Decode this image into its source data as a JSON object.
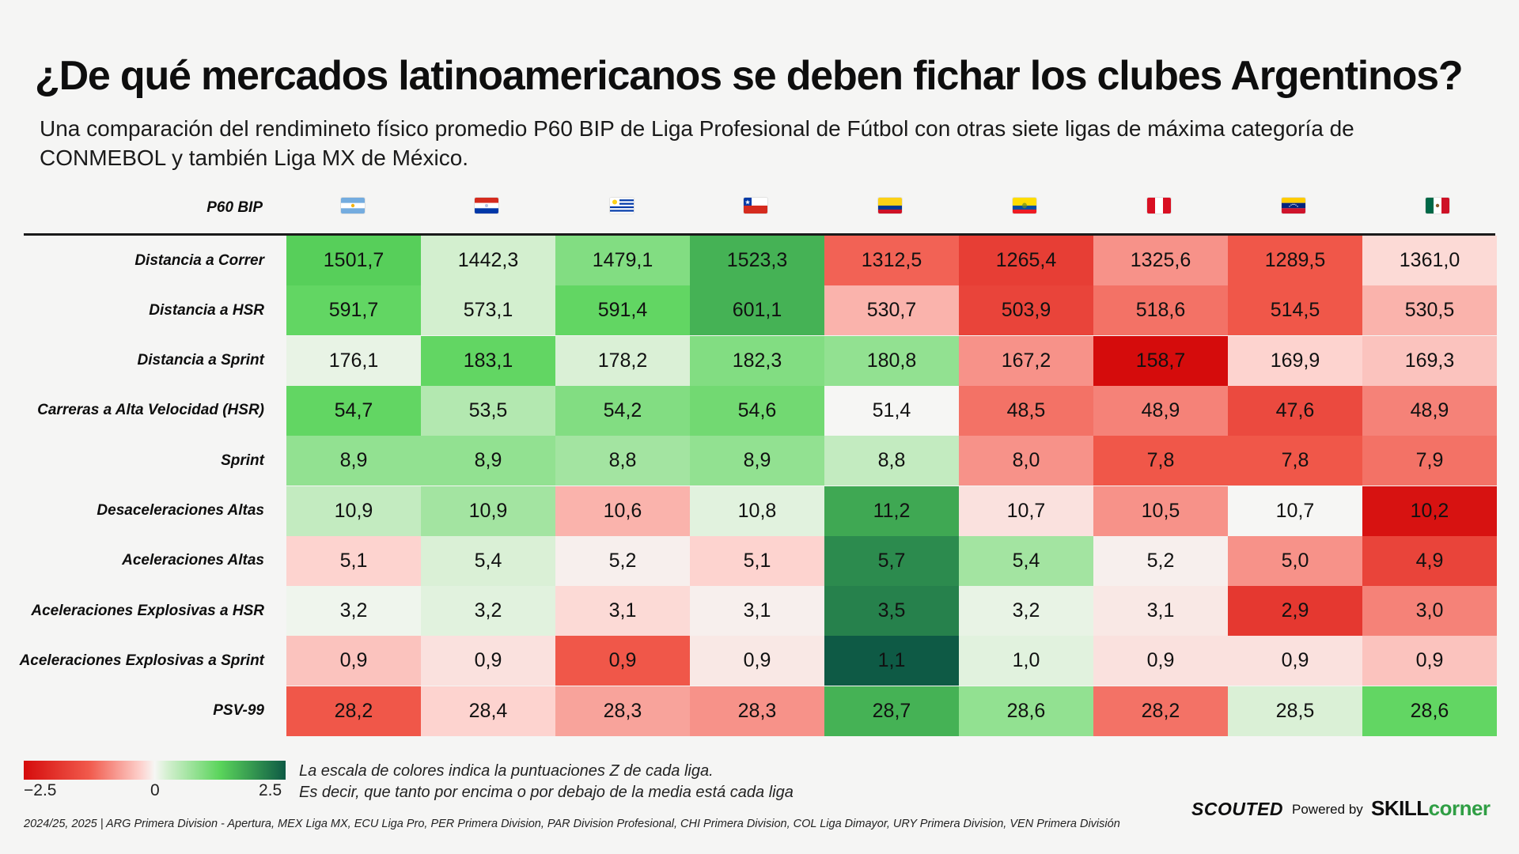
{
  "title": "¿De qué mercados latinoamericanos se deben fichar los clubes Argentinos?",
  "subtitle": "Una comparación del rendimineto físico promedio P60 BIP de Liga Profesional de Fútbol con otras siete ligas de máxima categoría de CONMEBOL y también Liga MX de México.",
  "header_label": "P60 BIP",
  "chart_data": {
    "type": "heatmap",
    "title": "¿De qué mercados latinoamericanos se deben fichar los clubes Argentinos?",
    "columns": [
      "ARG",
      "PAR",
      "URY",
      "CHI",
      "COL",
      "ECU",
      "PER",
      "VEN",
      "MEX"
    ],
    "column_icons": [
      "argentina-flag-icon",
      "paraguay-flag-icon",
      "uruguay-flag-icon",
      "chile-flag-icon",
      "colombia-flag-icon",
      "ecuador-flag-icon",
      "peru-flag-icon",
      "venezuela-flag-icon",
      "mexico-flag-icon"
    ],
    "rows": [
      {
        "label": "Distancia a Correr",
        "values": [
          "1501,7",
          "1442,3",
          "1479,1",
          "1523,3",
          "1312,5",
          "1265,4",
          "1325,6",
          "1289,5",
          "1361,0"
        ],
        "z": [
          1.3,
          0.5,
          1.0,
          1.6,
          -1.2,
          -1.7,
          -0.9,
          -1.3,
          -0.4
        ]
      },
      {
        "label": "Distancia a HSR",
        "values": [
          "591,7",
          "573,1",
          "591,4",
          "601,1",
          "530,7",
          "503,9",
          "518,6",
          "514,5",
          "530,5"
        ],
        "z": [
          1.2,
          0.5,
          1.2,
          1.6,
          -0.7,
          -1.6,
          -1.1,
          -1.3,
          -0.7
        ]
      },
      {
        "label": "Distancia a Sprint",
        "values": [
          "176,1",
          "183,1",
          "178,2",
          "182,3",
          "180,8",
          "167,2",
          "158,7",
          "169,9",
          "169,3"
        ],
        "z": [
          0.2,
          1.2,
          0.4,
          1.0,
          0.9,
          -0.9,
          -2.5,
          -0.5,
          -0.6
        ]
      },
      {
        "label": "Carreras a Alta Velocidad (HSR)",
        "values": [
          "54,7",
          "53,5",
          "54,2",
          "54,6",
          "51,4",
          "48,5",
          "48,9",
          "47,6",
          "48,9"
        ],
        "z": [
          1.2,
          0.7,
          1.0,
          1.1,
          0.0,
          -1.1,
          -1.0,
          -1.5,
          -1.0
        ]
      },
      {
        "label": "Sprint",
        "values": [
          "8,9",
          "8,9",
          "8,8",
          "8,9",
          "8,8",
          "8,0",
          "7,8",
          "7,8",
          "7,9"
        ],
        "z": [
          0.9,
          0.9,
          0.8,
          0.9,
          0.6,
          -0.9,
          -1.3,
          -1.3,
          -1.1
        ]
      },
      {
        "label": "Desaceleraciones Altas",
        "values": [
          "10,9",
          "10,9",
          "10,6",
          "10,8",
          "11,2",
          "10,7",
          "10,5",
          "10,7",
          "10,2"
        ],
        "z": [
          0.6,
          0.8,
          -0.7,
          0.3,
          1.7,
          -0.3,
          -0.9,
          0.0,
          -2.4
        ]
      },
      {
        "label": "Aceleraciones Altas",
        "values": [
          "5,1",
          "5,4",
          "5,2",
          "5,1",
          "5,7",
          "5,4",
          "5,2",
          "5,0",
          "4,9"
        ],
        "z": [
          -0.5,
          0.4,
          -0.1,
          -0.5,
          2.0,
          0.8,
          -0.1,
          -0.9,
          -1.6
        ]
      },
      {
        "label": "Aceleraciones Explosivas a HSR",
        "values": [
          "3,2",
          "3,2",
          "3,1",
          "3,1",
          "3,5",
          "3,2",
          "3,1",
          "2,9",
          "3,0"
        ],
        "z": [
          0.1,
          0.3,
          -0.4,
          -0.1,
          2.1,
          0.2,
          -0.2,
          -1.8,
          -1.0
        ]
      },
      {
        "label": "Aceleraciones Explosivas a Sprint",
        "values": [
          "0,9",
          "0,9",
          "0,9",
          "0,9",
          "1,1",
          "1,0",
          "0,9",
          "0,9",
          "0,9"
        ],
        "z": [
          -0.6,
          -0.3,
          -1.3,
          -0.2,
          2.5,
          0.3,
          -0.3,
          -0.3,
          -0.6
        ]
      },
      {
        "label": "PSV-99",
        "values": [
          "28,2",
          "28,4",
          "28,3",
          "28,3",
          "28,7",
          "28,6",
          "28,2",
          "28,5",
          "28,6"
        ],
        "z": [
          -1.3,
          -0.5,
          -0.8,
          -0.9,
          1.6,
          0.9,
          -1.1,
          0.4,
          1.2
        ]
      }
    ],
    "color_scale": {
      "min": -2.5,
      "mid": 0,
      "max": 2.5,
      "low_color": "#d50c0c",
      "mid_color": "#f6f6f4",
      "high_color": "#0e5a45"
    }
  },
  "legend": {
    "min_label": "−2.5",
    "mid_label": "0",
    "max_label": "2.5",
    "line1": "La escala de colores indica la puntuaciones Z de cada liga.",
    "line2": "Es decir, que tanto por encima o por debajo de la media está cada liga"
  },
  "footer": "2024/25, 2025 | ARG Primera Division - Apertura, MEX Liga MX, ECU Liga Pro, PER Primera Division, PAR Division Profesional, CHI Primera Division, COL Liga Dimayor, URY Primera Division, VEN Primera División",
  "brand": {
    "scouted": "SCOUTED",
    "powered_by": "Powered by",
    "skill": "SKILL",
    "corner": "corner"
  }
}
